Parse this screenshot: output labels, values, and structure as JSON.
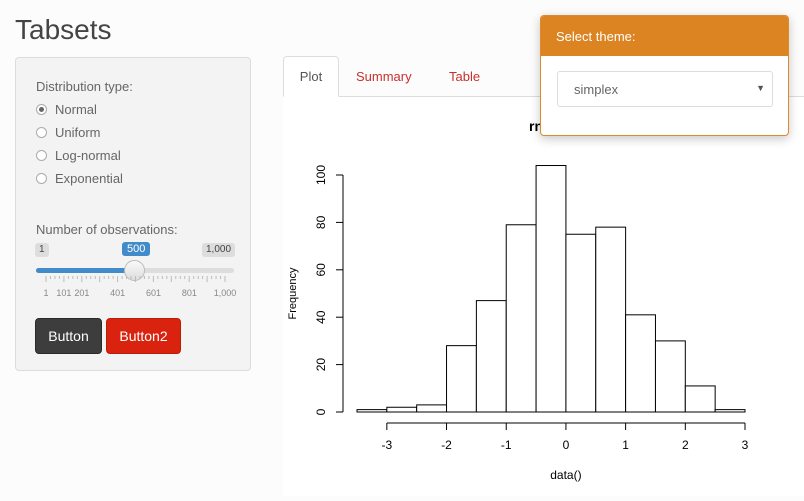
{
  "page": {
    "title": "Tabsets"
  },
  "sidebar": {
    "distribution_label": "Distribution type:",
    "options": [
      {
        "label": "Normal",
        "checked": true
      },
      {
        "label": "Uniform",
        "checked": false
      },
      {
        "label": "Log-normal",
        "checked": false
      },
      {
        "label": "Exponential",
        "checked": false
      }
    ],
    "obs_label": "Number of observations:",
    "slider": {
      "min_label": "1",
      "max_label": "1,000",
      "value_label": "500",
      "value": 500,
      "min": 1,
      "max": 1000,
      "ticks": [
        "1",
        "101",
        "201",
        "401",
        "601",
        "801",
        "1,000"
      ]
    },
    "button1": "Button",
    "button2": "Button2"
  },
  "tabs": [
    {
      "label": "Plot",
      "active": true
    },
    {
      "label": "Summary",
      "active": false
    },
    {
      "label": "Table",
      "active": false
    }
  ],
  "theme": {
    "header": "Select theme:",
    "selected": "simplex"
  },
  "chart_data": {
    "type": "bar",
    "title": "rnor",
    "xlabel": "data()",
    "ylabel": "Frequency",
    "bin_edges": [
      -3.5,
      -3,
      -2.5,
      -2,
      -1.5,
      -1,
      -0.5,
      0,
      0.5,
      1,
      1.5,
      2,
      2.5,
      3
    ],
    "values": [
      1,
      2,
      3,
      28,
      47,
      79,
      104,
      75,
      78,
      41,
      30,
      11,
      1
    ],
    "xticks": [
      -3,
      -2,
      -1,
      0,
      1,
      2,
      3
    ],
    "yticks": [
      0,
      20,
      40,
      60,
      80,
      100
    ],
    "xlim": [
      -3.5,
      3
    ],
    "ylim": [
      0,
      104
    ]
  }
}
